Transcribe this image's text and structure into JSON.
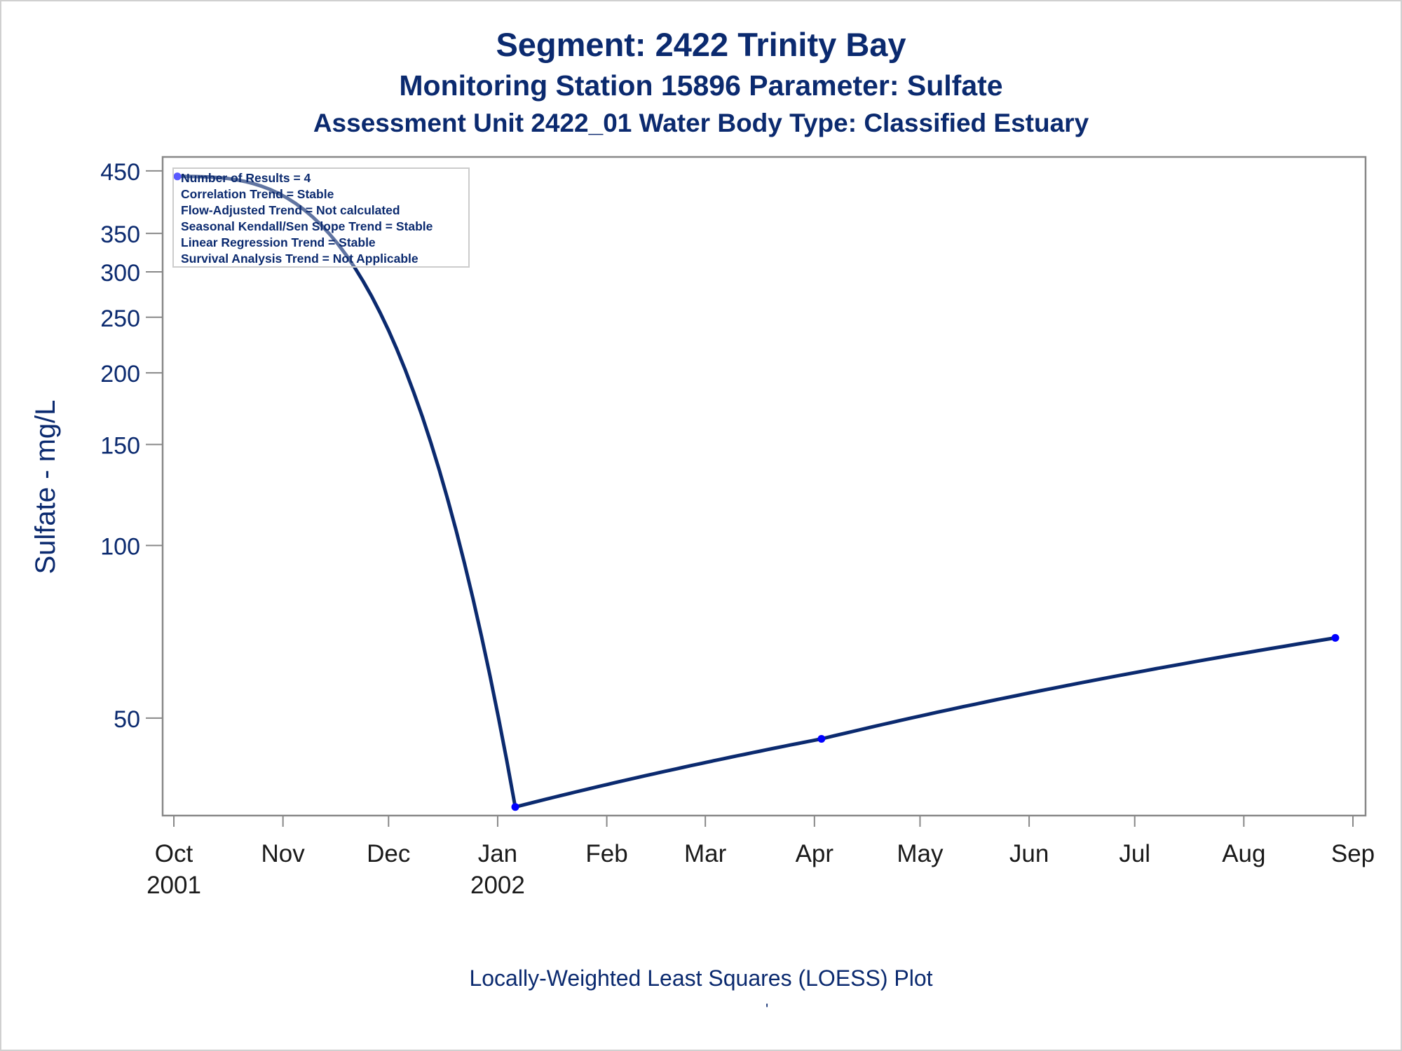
{
  "chart_data": {
    "type": "line",
    "title": "Segment: 2422  Trinity Bay",
    "subtitle": "Monitoring Station 15896 Parameter: Sulfate",
    "subtitle2": "Assessment Unit 2422_01   Water Body Type: Classified Estuary",
    "ylabel": "Sulfate - mg/L",
    "xlabel": "Locally-Weighted Least Squares (LOESS) Plot",
    "footnote_mark": "'",
    "y_scale": "log",
    "ylim": [
      34,
      460
    ],
    "yticks": [
      50,
      100,
      150,
      200,
      250,
      300,
      350,
      450
    ],
    "xlim": [
      "2001-09-30",
      "2002-09-01"
    ],
    "xticks": [
      {
        "date": "2001-10-01",
        "month": "Oct",
        "year": "2001"
      },
      {
        "date": "2001-11-01",
        "month": "Nov",
        "year": ""
      },
      {
        "date": "2001-12-01",
        "month": "Dec",
        "year": ""
      },
      {
        "date": "2002-01-01",
        "month": "Jan",
        "year": "2002"
      },
      {
        "date": "2002-02-01",
        "month": "Feb",
        "year": ""
      },
      {
        "date": "2002-03-01",
        "month": "Mar",
        "year": ""
      },
      {
        "date": "2002-04-01",
        "month": "Apr",
        "year": ""
      },
      {
        "date": "2002-05-01",
        "month": "May",
        "year": ""
      },
      {
        "date": "2002-06-01",
        "month": "Jun",
        "year": ""
      },
      {
        "date": "2002-07-01",
        "month": "Jul",
        "year": ""
      },
      {
        "date": "2002-08-01",
        "month": "Aug",
        "year": ""
      },
      {
        "date": "2002-09-01",
        "month": "Sep",
        "year": ""
      }
    ],
    "points": [
      {
        "date": "2001-10-02",
        "value": 440
      },
      {
        "date": "2002-01-06",
        "value": 35
      },
      {
        "date": "2002-04-03",
        "value": 46
      },
      {
        "date": "2002-08-27",
        "value": 69
      }
    ],
    "legend": {
      "placement": "top-left",
      "lines": [
        "Number of Results = 4",
        "Correlation Trend = Stable",
        "Flow-Adjusted Trend = Not calculated",
        "Seasonal Kendall/Sen Slope Trend = Stable",
        "Linear Regression Trend = Stable",
        "Survival Analysis Trend = Not Applicable"
      ]
    },
    "colors": {
      "line": "#0b2a6f",
      "marker": "#0000ff",
      "text": "#0b2a6f",
      "axis": "#888888"
    }
  }
}
